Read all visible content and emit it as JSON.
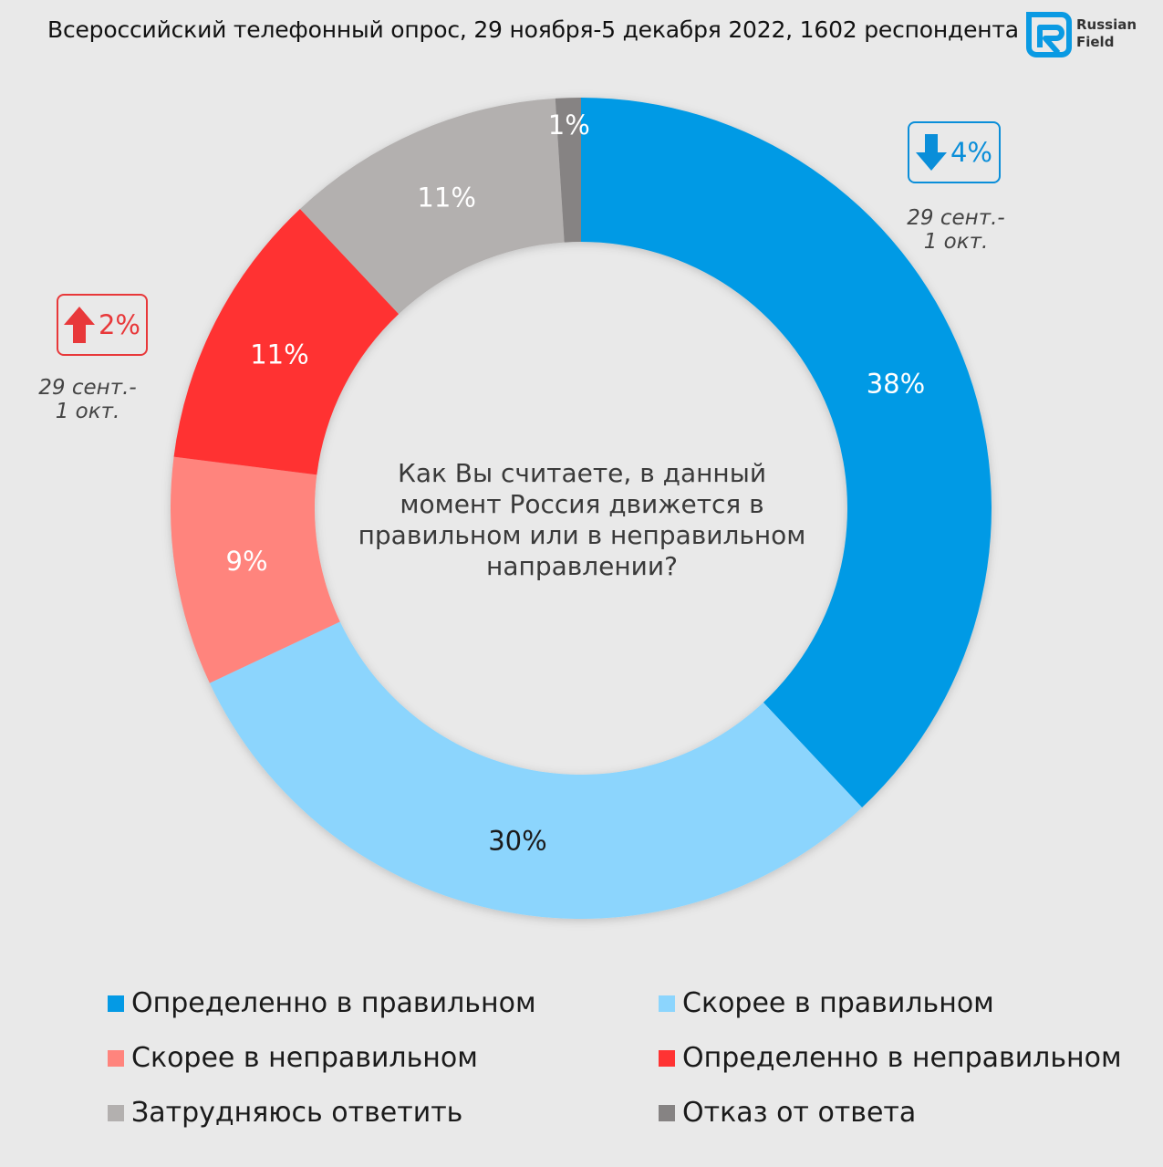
{
  "header": {
    "subtitle": "Всероссийский телефонный опрос, 29 ноября-5 декабря 2022, 1602 респондента",
    "logo_line1": "Russian",
    "logo_line2": "Field",
    "logo_icon": "russian-field-logo-icon"
  },
  "chart_data": {
    "type": "pie",
    "variant": "donut",
    "title": "Как Вы считаете, в данный момент Россия движется в правильном или в неправильном направлении?",
    "slices": [
      {
        "label": "Определенно в правильном",
        "value": 38,
        "display": "38%",
        "color": "#049ae5"
      },
      {
        "label": "Скорее в правильном",
        "value": 30,
        "display": "30%",
        "color": "#8cd5fd"
      },
      {
        "label": "Скорее в неправильном",
        "value": 9,
        "display": "9%",
        "color": "#ff847d"
      },
      {
        "label": "Определенно в неправильном",
        "value": 11,
        "display": "11%",
        "color": "#ff3333"
      },
      {
        "label": "Затрудняюсь ответить",
        "value": 11,
        "display": "11%",
        "color": "#b3b0af"
      },
      {
        "label": "Отказ от ответа",
        "value": 1,
        "display": "1%",
        "color": "#868383"
      }
    ],
    "legend_position": "bottom",
    "annotations": [
      {
        "direction": "down",
        "value": "4%",
        "period_line1": "29 сент.-",
        "period_line2": "1 окт.",
        "color": "#0a8ed9"
      },
      {
        "direction": "up",
        "value": "2%",
        "period_line1": "29 сент.-",
        "period_line2": "1 окт.",
        "color": "#e8383a"
      }
    ]
  },
  "legend": [
    {
      "label": "Определенно в правильном",
      "color": "#049ae5"
    },
    {
      "label": "Скорее в правильном",
      "color": "#8cd5fd"
    },
    {
      "label": "Скорее в неправильном",
      "color": "#ff847d"
    },
    {
      "label": "Определенно в неправильном",
      "color": "#ff3333"
    },
    {
      "label": "Затрудняюсь ответить",
      "color": "#b3b0af"
    },
    {
      "label": "Отказ от ответа",
      "color": "#868383"
    }
  ]
}
